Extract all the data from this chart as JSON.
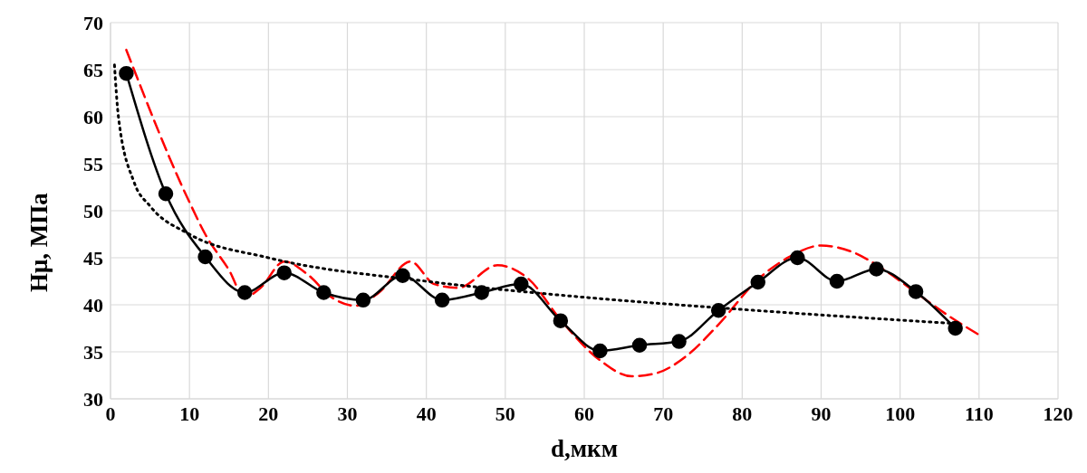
{
  "chart_data": {
    "type": "line",
    "xlabel": "d,мкм",
    "ylabel": "Hμ, МПа",
    "xlim": [
      0,
      120
    ],
    "xticks": [
      0,
      10,
      20,
      30,
      40,
      50,
      60,
      70,
      80,
      90,
      100,
      110,
      120
    ],
    "ylim": [
      30,
      70
    ],
    "yticks": [
      30,
      35,
      40,
      45,
      50,
      55,
      60,
      65,
      70
    ],
    "grid": true,
    "series": [
      {
        "color": "#ff0000",
        "line_style": "dashed",
        "marker": "none",
        "x": [
          2,
          10,
          12,
          15,
          17,
          19,
          22,
          25,
          28,
          31,
          34,
          38,
          41,
          44,
          49,
          53,
          57,
          62,
          66,
          69,
          73,
          77,
          82,
          86,
          90,
          94,
          98,
          102,
          106,
          110
        ],
        "values": [
          67.1,
          50.9,
          47.5,
          43.7,
          40.8,
          41.8,
          44.6,
          43.2,
          40.8,
          39.9,
          41.3,
          44.6,
          42.2,
          41.8,
          44.2,
          42.7,
          38.4,
          34.1,
          32.4,
          32.7,
          34.6,
          37.9,
          42.7,
          45.1,
          46.3,
          45.6,
          43.7,
          41.3,
          38.9,
          36.8
        ]
      },
      {
        "color": "#000000",
        "line_style": "dotted",
        "marker": "none",
        "x": [
          0.5,
          1,
          3,
          5,
          10,
          20,
          40,
          60,
          80,
          107
        ],
        "values": [
          65.5,
          60,
          53,
          50.5,
          47.5,
          45,
          42.5,
          40.8,
          39.5,
          38
        ]
      },
      {
        "color": "#000000",
        "line_style": "solid",
        "marker": "circle",
        "x": [
          2,
          7,
          12,
          17,
          22,
          27,
          32,
          37,
          42,
          47,
          52,
          57,
          62,
          67,
          72,
          77,
          82,
          87,
          92,
          97,
          102,
          107
        ],
        "values": [
          64.6,
          51.8,
          45.1,
          41.3,
          43.4,
          41.3,
          40.5,
          43.1,
          40.5,
          41.3,
          42.2,
          38.3,
          35.1,
          35.7,
          36.1,
          39.4,
          42.4,
          45.0,
          42.5,
          43.8,
          41.4,
          37.5
        ]
      }
    ]
  }
}
